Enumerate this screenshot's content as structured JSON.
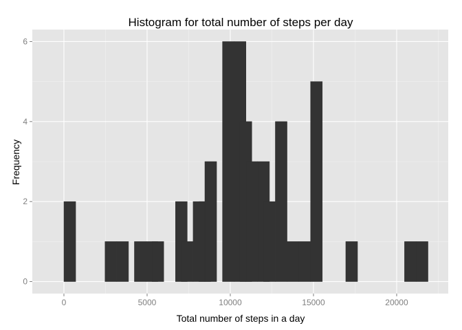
{
  "chart_data": {
    "type": "bar",
    "title": "Histogram for total number of steps per day",
    "xlabel": "Total number of steps in a day",
    "ylabel": "Frequency",
    "bin_width": 706,
    "x_range": [
      -1900,
      23100
    ],
    "ylim": [
      -0.3,
      6.3
    ],
    "x_ticks": [
      0,
      5000,
      10000,
      15000,
      20000
    ],
    "y_ticks": [
      0,
      2,
      4,
      6
    ],
    "grid": true,
    "bins": [
      {
        "start": 0,
        "count": 2
      },
      {
        "start": 2470,
        "count": 1
      },
      {
        "start": 3176,
        "count": 1
      },
      {
        "start": 4235,
        "count": 1
      },
      {
        "start": 4941,
        "count": 1
      },
      {
        "start": 5294,
        "count": 1
      },
      {
        "start": 6706,
        "count": 2
      },
      {
        "start": 7059,
        "count": 1
      },
      {
        "start": 7765,
        "count": 2
      },
      {
        "start": 8118,
        "count": 2
      },
      {
        "start": 8471,
        "count": 3
      },
      {
        "start": 9530,
        "count": 6
      },
      {
        "start": 10235,
        "count": 6
      },
      {
        "start": 10588,
        "count": 4
      },
      {
        "start": 10941,
        "count": 3
      },
      {
        "start": 11647,
        "count": 3
      },
      {
        "start": 12000,
        "count": 2
      },
      {
        "start": 12706,
        "count": 4
      },
      {
        "start": 13412,
        "count": 1
      },
      {
        "start": 14118,
        "count": 1
      },
      {
        "start": 14824,
        "count": 5
      },
      {
        "start": 16941,
        "count": 1
      },
      {
        "start": 20471,
        "count": 1
      },
      {
        "start": 21177,
        "count": 1
      }
    ],
    "colors": {
      "panel": "#e5e5e5",
      "grid_major": "#ffffff",
      "grid_minor": "#f2f2f2",
      "bar": "#333333",
      "tick": "#7f7f7f"
    }
  }
}
